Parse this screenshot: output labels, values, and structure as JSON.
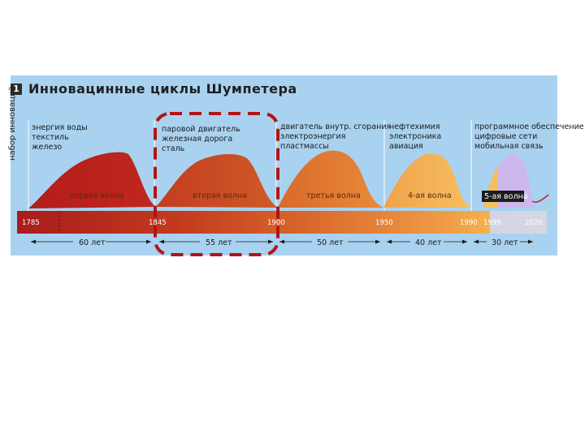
{
  "title": {
    "number": "1",
    "text": "Инновацинные циклы Шумпетера"
  },
  "y_axis_label": "набор инноваций",
  "waves": [
    {
      "name": "первая волна",
      "innovations": [
        "энергия воды",
        "текстиль",
        "железо"
      ],
      "color": "#b5221c"
    },
    {
      "name": "вторая волна",
      "innovations": [
        "паровой двигатель",
        "железная дорога",
        "сталь"
      ],
      "color": "#c74a22"
    },
    {
      "name": "третья волна",
      "innovations": [
        "двигатель внутр. сгорания",
        "электроэнергия",
        "пластмассы"
      ],
      "color": "#e0752e"
    },
    {
      "name": "4-ая волна",
      "innovations": [
        "нефтехимия",
        "электроника",
        "авиация"
      ],
      "color": "#f5b35a"
    },
    {
      "name": "5-ая волна",
      "innovations": [
        "программное обеспечение",
        "цифровые сети",
        "мобильная связь"
      ],
      "color": "#cdb8ee"
    }
  ],
  "years": [
    "1785",
    "1845",
    "1900",
    "1950",
    "1990",
    "1999",
    "2020"
  ],
  "durations": [
    "60 лет",
    "55 лет",
    "50 лет",
    "40 лет",
    "30 лет"
  ],
  "colors": {
    "highlight": "#b01515",
    "panel": "#a9d2f0"
  }
}
